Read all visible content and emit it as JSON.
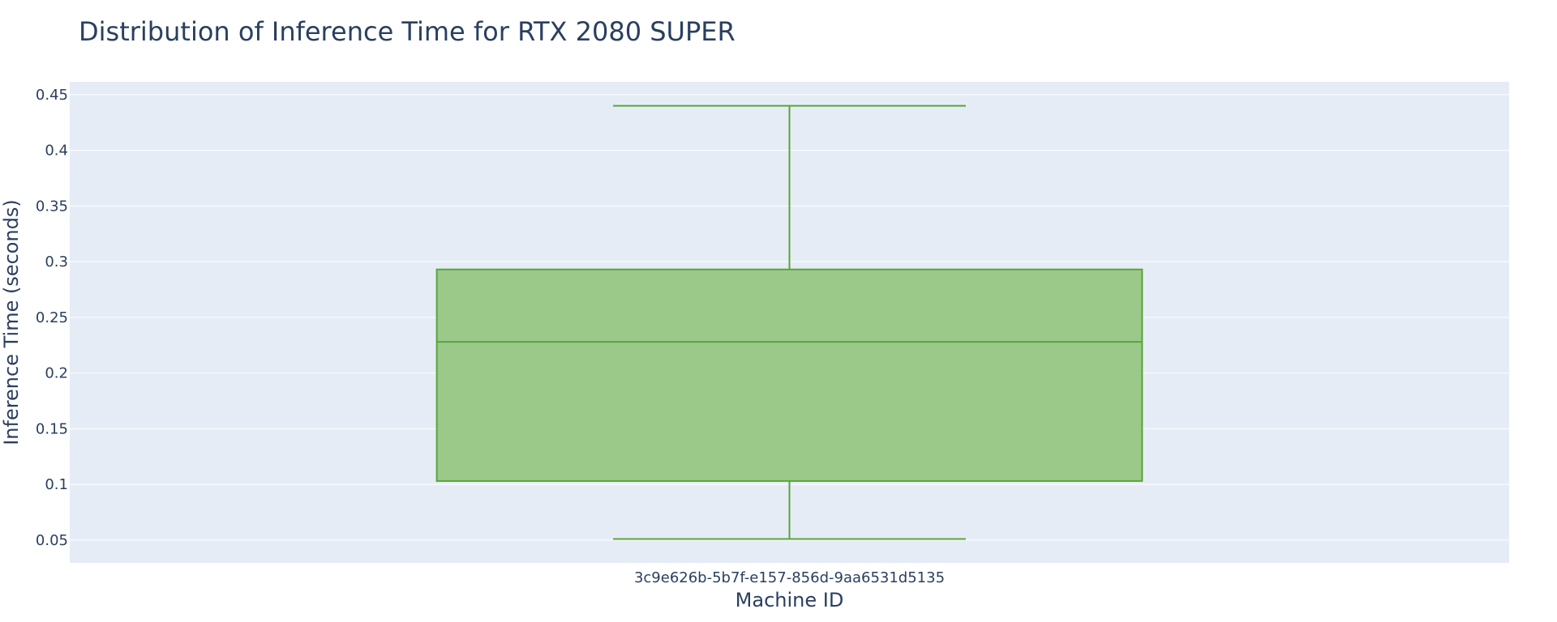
{
  "chart_data": {
    "type": "box",
    "title": "Distribution of Inference Time for RTX 2080 SUPER",
    "xlabel": "Machine ID",
    "ylabel": "Inference Time (seconds)",
    "categories": [
      "3c9e626b-5b7f-e157-856d-9aa6531d5135"
    ],
    "series": [
      {
        "min": 0.051,
        "q1": 0.103,
        "median": 0.228,
        "q3": 0.293,
        "max": 0.44
      }
    ],
    "ylim": [
      0.0295,
      0.4615
    ],
    "yticks": [
      0.05,
      0.1,
      0.15,
      0.2,
      0.25,
      0.3,
      0.35,
      0.4,
      0.45
    ],
    "ytick_labels": [
      "0.05",
      "0.1",
      "0.15",
      "0.2",
      "0.25",
      "0.3",
      "0.35",
      "0.4",
      "0.45"
    ],
    "grid": true,
    "colors": {
      "plot_bg": "#e5ecf6",
      "grid": "#ffffff",
      "box_line": "#57a637",
      "box_fill": "#9bc98a",
      "text": "#2a3f5f"
    }
  }
}
